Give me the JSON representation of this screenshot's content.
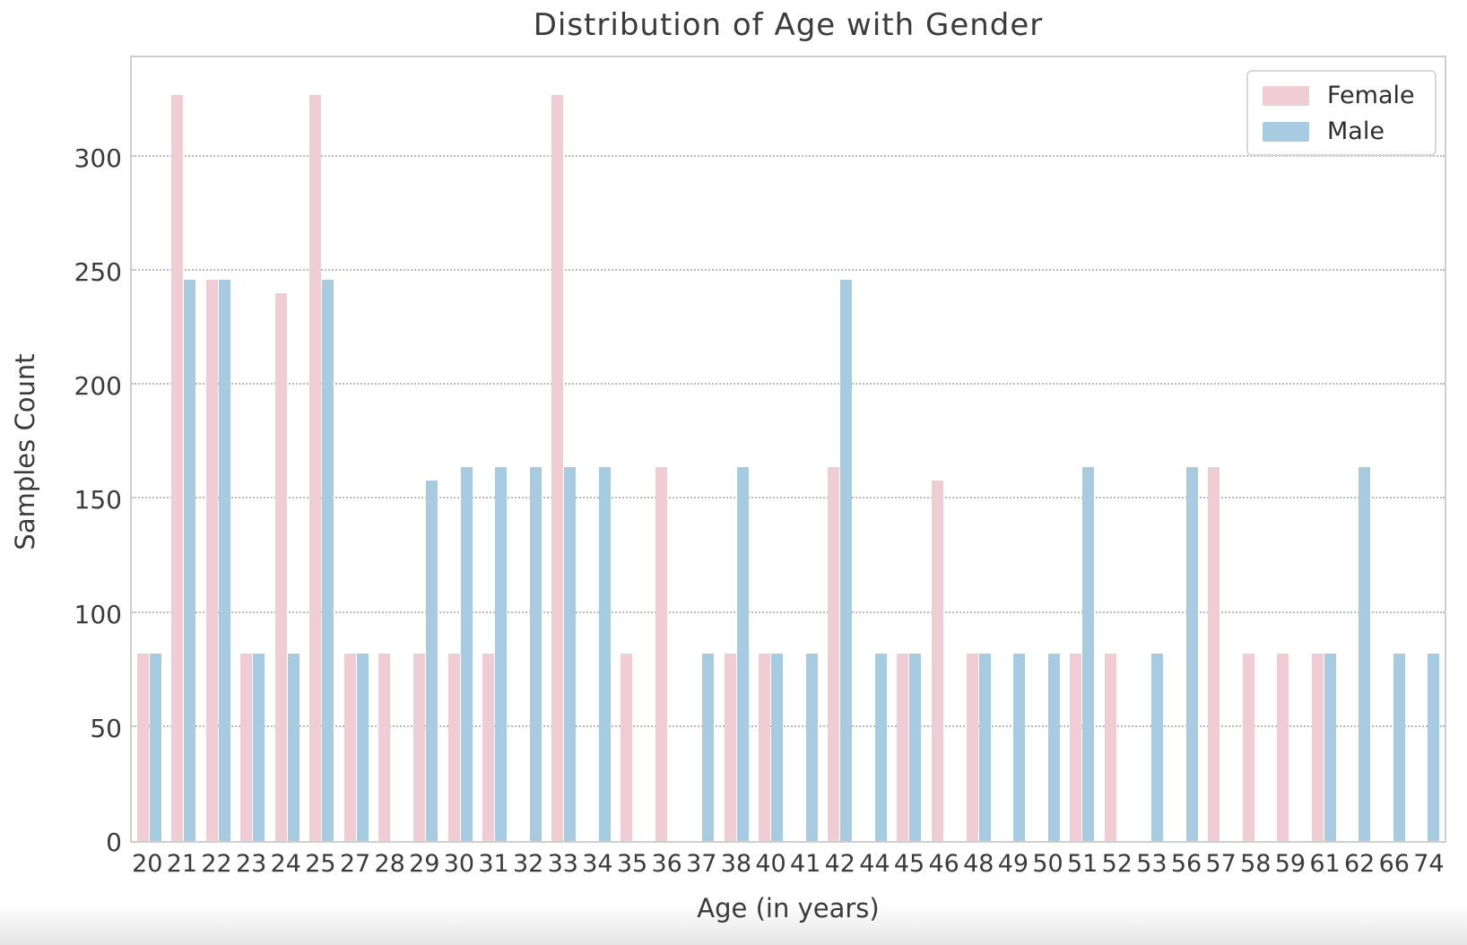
{
  "figure": {
    "title": "Distribution of Age with Gender",
    "xlabel": "Age (in years)",
    "ylabel": "Samples Count"
  },
  "legend": {
    "items": [
      {
        "label": "Female",
        "color": "#f0cdd5"
      },
      {
        "label": "Male",
        "color": "#a7cbe0"
      }
    ]
  },
  "chart_data": {
    "type": "bar",
    "title": "Distribution of Age with Gender",
    "xlabel": "Age (in years)",
    "ylabel": "Samples Count",
    "categories": [
      "20",
      "21",
      "22",
      "23",
      "24",
      "25",
      "27",
      "28",
      "29",
      "30",
      "31",
      "32",
      "33",
      "34",
      "35",
      "36",
      "37",
      "38",
      "40",
      "41",
      "42",
      "44",
      "45",
      "46",
      "48",
      "49",
      "50",
      "51",
      "52",
      "53",
      "56",
      "57",
      "58",
      "59",
      "61",
      "62",
      "66",
      "74"
    ],
    "series": [
      {
        "name": "Female",
        "color": "#f0cdd5",
        "values": [
          82,
          327,
          246,
          82,
          240,
          327,
          82,
          82,
          82,
          82,
          82,
          null,
          327,
          null,
          82,
          164,
          null,
          82,
          82,
          null,
          164,
          null,
          82,
          158,
          82,
          null,
          null,
          82,
          82,
          null,
          null,
          164,
          82,
          82,
          82,
          null,
          null,
          null
        ]
      },
      {
        "name": "Male",
        "color": "#a7cbe0",
        "values": [
          82,
          246,
          246,
          82,
          82,
          246,
          82,
          null,
          158,
          164,
          164,
          164,
          164,
          164,
          null,
          null,
          82,
          164,
          82,
          82,
          246,
          82,
          82,
          null,
          82,
          82,
          82,
          164,
          null,
          82,
          164,
          null,
          null,
          null,
          82,
          164,
          82,
          82
        ]
      }
    ],
    "yticks": [
      0,
      50,
      100,
      150,
      200,
      250,
      300
    ],
    "ylim": [
      0,
      345
    ],
    "grid": "horizontal-dotted",
    "legend_position": "upper right"
  }
}
